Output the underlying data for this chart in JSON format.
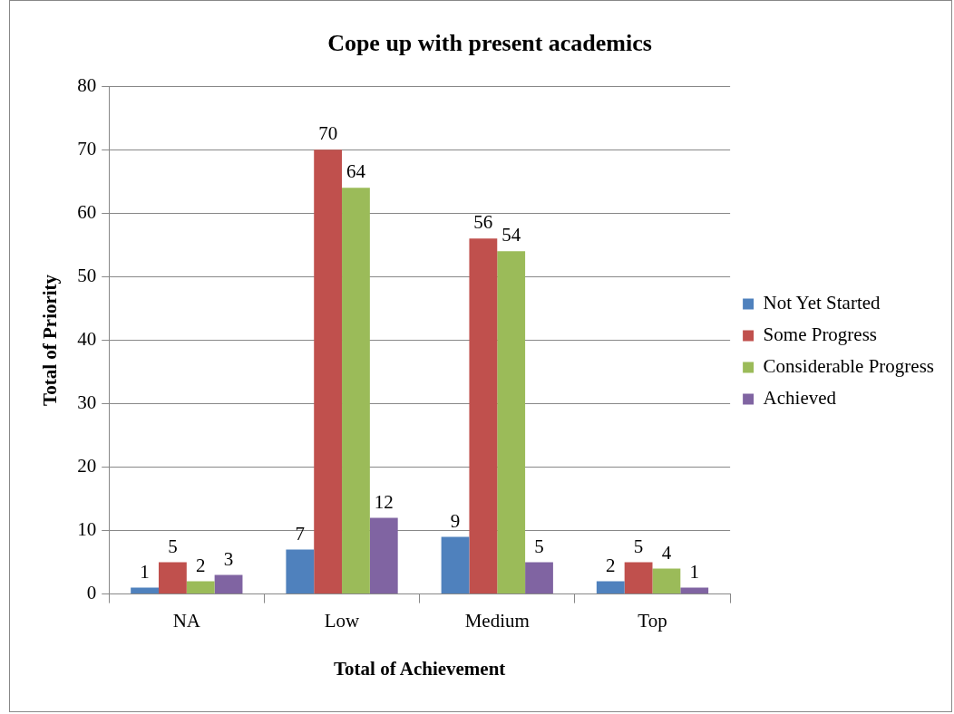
{
  "chart_data": {
    "type": "bar",
    "title": "Cope up with present academics",
    "xlabel": "Total of Achievement",
    "ylabel": "Total of Priority",
    "categories": [
      "NA",
      "Low",
      "Medium",
      "Top"
    ],
    "series": [
      {
        "name": "Not Yet Started",
        "color": "#4f81bd",
        "values": [
          1,
          7,
          9,
          2
        ]
      },
      {
        "name": "Some Progress",
        "color": "#c0504d",
        "values": [
          5,
          70,
          56,
          5
        ]
      },
      {
        "name": "Considerable Progress",
        "color": "#9bbb59",
        "values": [
          2,
          64,
          54,
          4
        ]
      },
      {
        "name": "Achieved",
        "color": "#8064a2",
        "values": [
          3,
          12,
          5,
          1
        ]
      }
    ],
    "ylim": [
      0,
      80
    ],
    "yticks": [
      0,
      10,
      20,
      30,
      40,
      50,
      60,
      70,
      80
    ],
    "grid": "y",
    "legend": "right",
    "data_labels": true
  }
}
